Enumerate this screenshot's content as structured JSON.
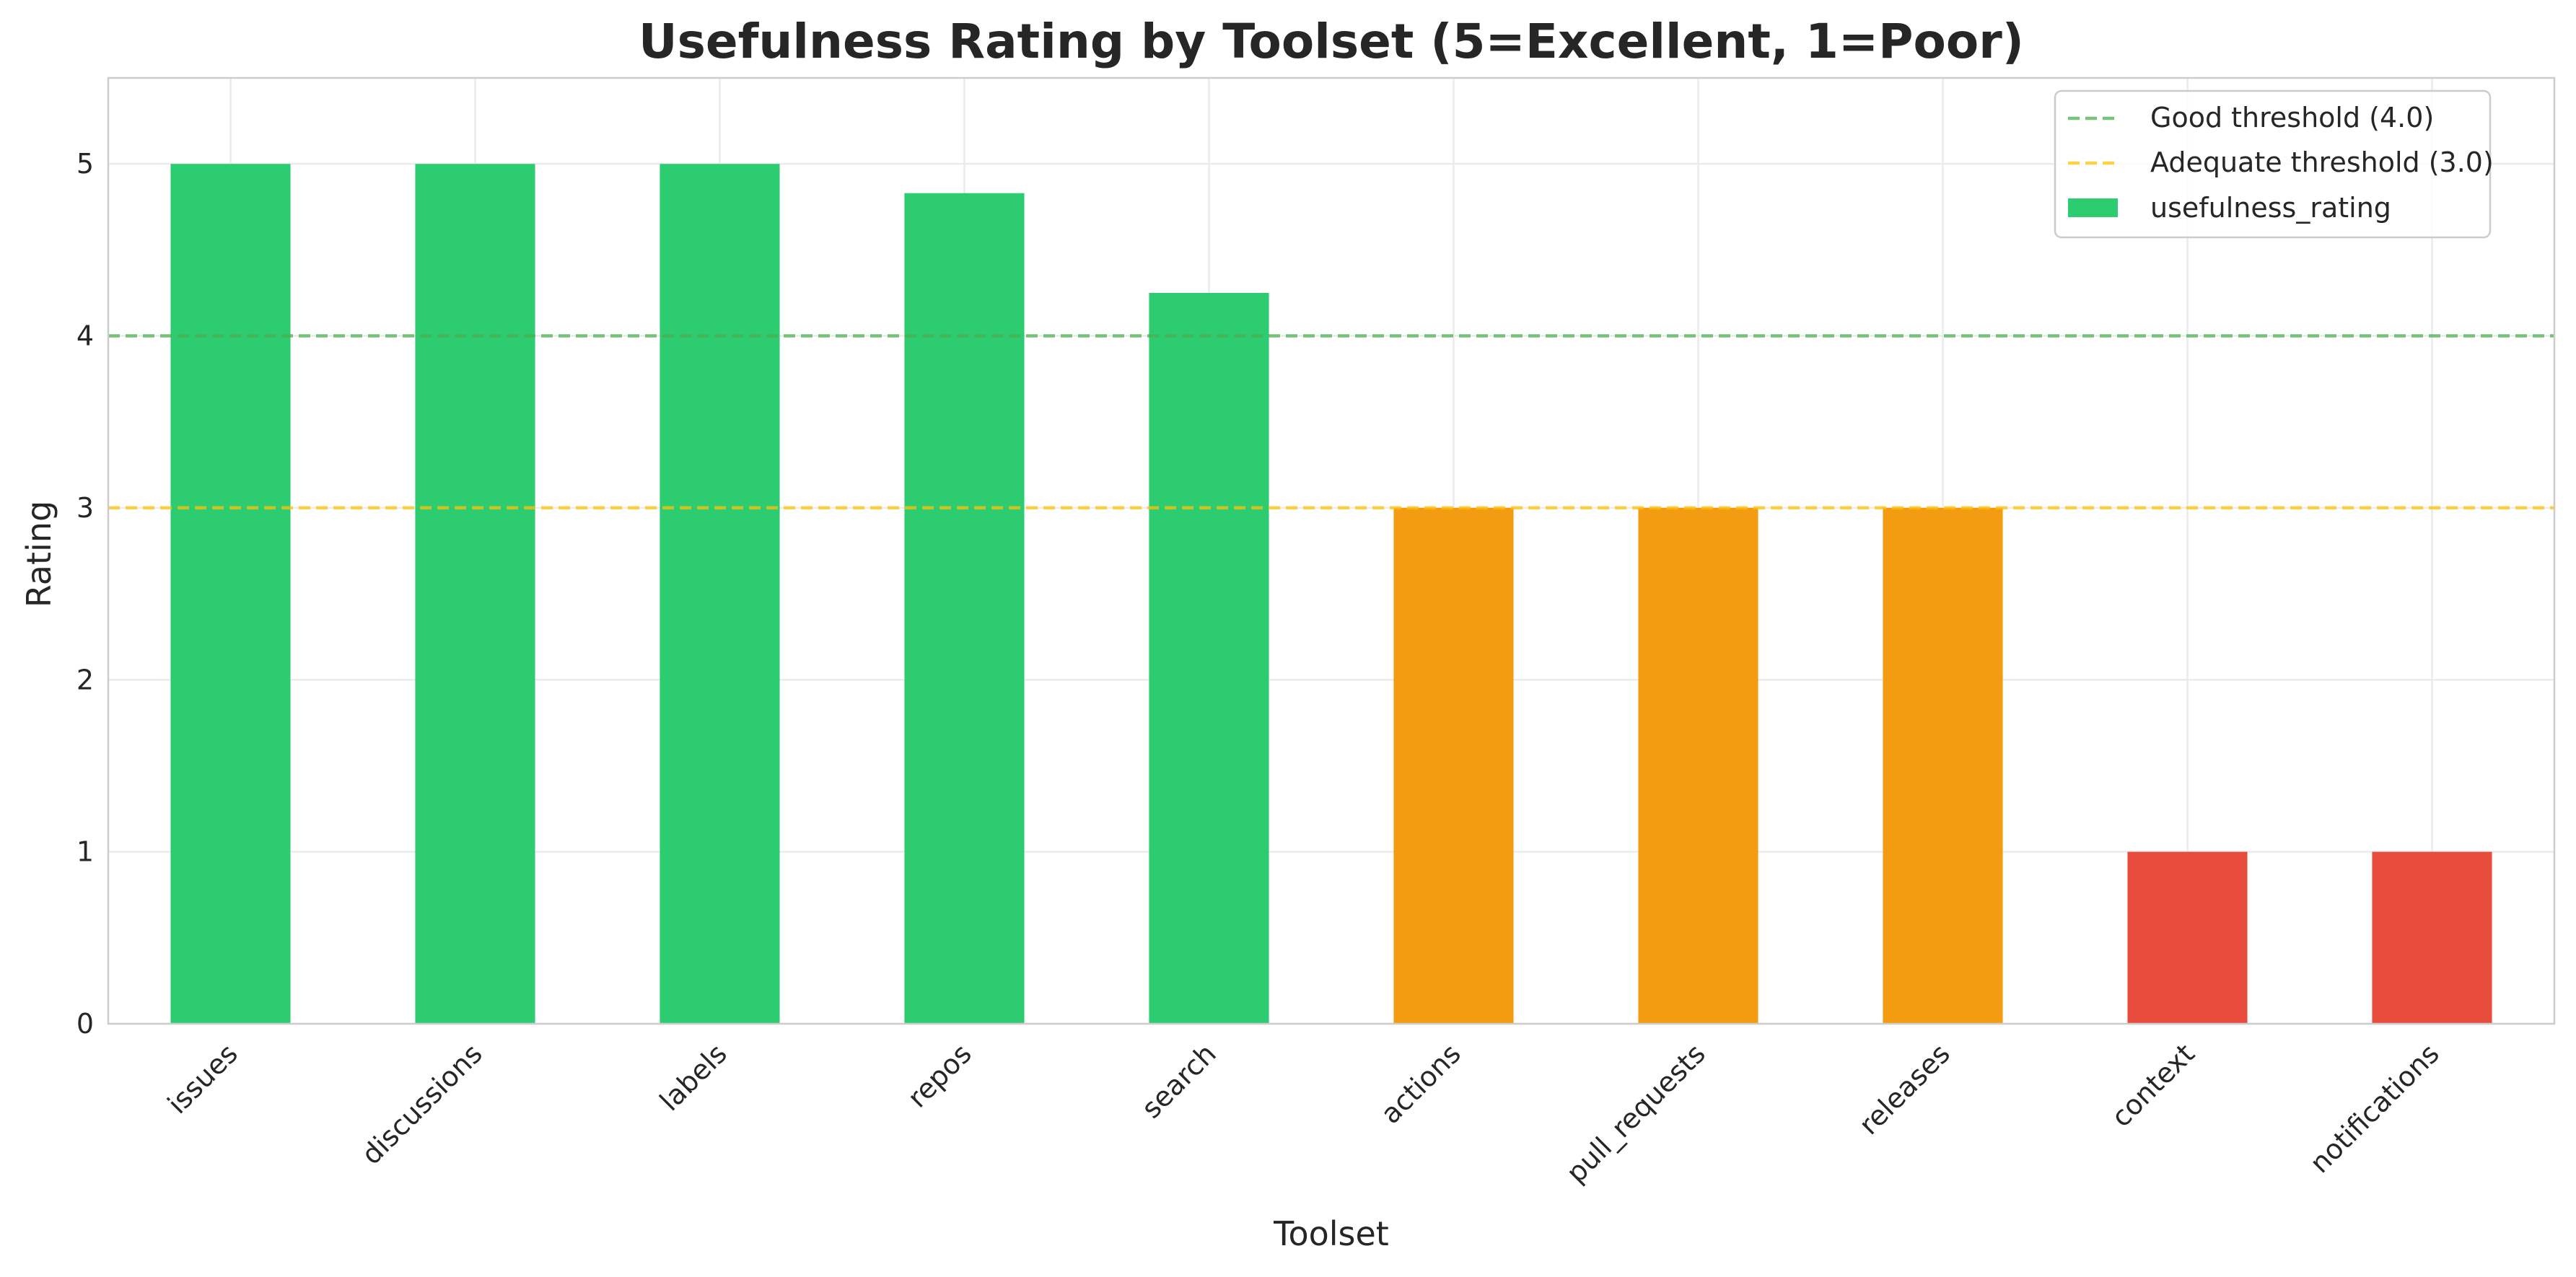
{
  "chart_data": {
    "type": "bar",
    "title": "Usefulness Rating by Toolset (5=Excellent, 1=Poor)",
    "xlabel": "Toolset",
    "ylabel": "Rating",
    "categories": [
      "issues",
      "discussions",
      "labels",
      "repos",
      "search",
      "actions",
      "pull_requests",
      "releases",
      "context",
      "notifications"
    ],
    "series": [
      {
        "name": "usefulness_rating",
        "values": [
          5.0,
          5.0,
          5.0,
          4.83,
          4.25,
          3.0,
          3.0,
          3.0,
          1.0,
          1.0
        ],
        "colors": [
          "#2ecc71",
          "#2ecc71",
          "#2ecc71",
          "#2ecc71",
          "#2ecc71",
          "#f39c12",
          "#f39c12",
          "#f39c12",
          "#e74c3c",
          "#e74c3c"
        ]
      }
    ],
    "ylim": [
      0,
      5.5
    ],
    "yticks": [
      0,
      1,
      2,
      3,
      4,
      5
    ],
    "reference_lines": [
      {
        "name": "Good threshold (4.0)",
        "value": 4.0,
        "color": "#4caf50",
        "style": "dashed"
      },
      {
        "name": "Adequate threshold (3.0)",
        "value": 3.0,
        "color": "#ffc107",
        "style": "dashed"
      }
    ],
    "legend_swatch_color": "#2ecc71",
    "grid": true,
    "legend_position": "top-right",
    "x_tick_rotation": 45
  }
}
